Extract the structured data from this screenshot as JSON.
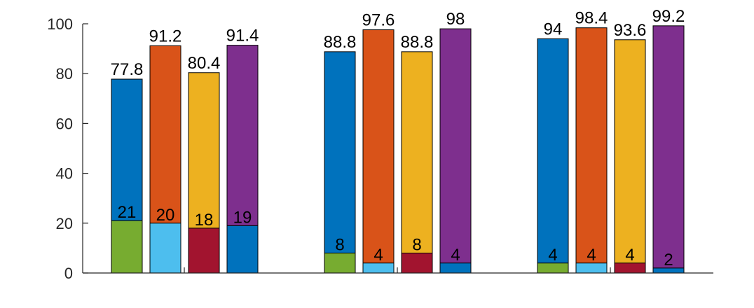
{
  "chart_data": {
    "type": "bar",
    "stacking": "overlaid",
    "groups": 3,
    "ylim": [
      0,
      100
    ],
    "yticks": [
      0,
      20,
      40,
      60,
      80,
      100
    ],
    "grid": false,
    "legend": "none",
    "title": "",
    "xlabel": "",
    "ylabel": "",
    "series_front": [
      {
        "colors": [
          "#77AC30",
          "#4DBEEE",
          "#A2142F",
          "#0072BD"
        ],
        "values": [
          21,
          20,
          18,
          19
        ]
      },
      {
        "colors": [
          "#77AC30",
          "#4DBEEE",
          "#A2142F",
          "#0072BD"
        ],
        "values": [
          8,
          4,
          8,
          4
        ]
      },
      {
        "colors": [
          "#77AC30",
          "#4DBEEE",
          "#A2142F",
          "#0072BD"
        ],
        "values": [
          4,
          4,
          4,
          2
        ]
      }
    ],
    "series_back": [
      {
        "colors": [
          "#0072BD",
          "#D95319",
          "#EDB120",
          "#7E2F8E"
        ],
        "values": [
          77.8,
          91.2,
          80.4,
          91.4
        ]
      },
      {
        "colors": [
          "#0072BD",
          "#D95319",
          "#EDB120",
          "#7E2F8E"
        ],
        "values": [
          88.8,
          97.6,
          88.8,
          98
        ]
      },
      {
        "colors": [
          "#0072BD",
          "#D95319",
          "#EDB120",
          "#7E2F8E"
        ],
        "values": [
          94,
          98.4,
          93.6,
          99.2
        ]
      }
    ],
    "back_labels": [
      [
        "77.8",
        "91.2",
        "80.4",
        "91.4"
      ],
      [
        "88.8",
        "97.6",
        "88.8",
        "98"
      ],
      [
        "94",
        "98.4",
        "93.6",
        "99.2"
      ]
    ],
    "front_labels": [
      [
        "21",
        "20",
        "18",
        "19"
      ],
      [
        "8",
        "4",
        "8",
        "4"
      ],
      [
        "4",
        "4",
        "4",
        "2"
      ]
    ],
    "ytick_labels": [
      "0",
      "20",
      "40",
      "60",
      "80",
      "100"
    ]
  }
}
